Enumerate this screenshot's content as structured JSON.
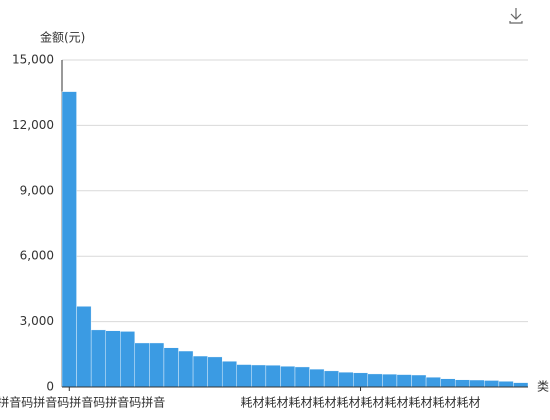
{
  "chart_data": {
    "type": "bar",
    "y_axis_label": "金额(元)",
    "x_axis_label": "类",
    "categories": [
      "音码拼音码拼音码拼音码拼音码拼音",
      null,
      null,
      null,
      null,
      null,
      null,
      null,
      null,
      null,
      null,
      null,
      null,
      null,
      null,
      null,
      null,
      null,
      null,
      null,
      "耗材耗材耗材耗材耗材耗材耗材耗材耗材耗材",
      null,
      null,
      null,
      null,
      null,
      null,
      null,
      null,
      null,
      null,
      null
    ],
    "values": [
      13550,
      3700,
      2620,
      2580,
      2550,
      2020,
      2020,
      1800,
      1650,
      1420,
      1380,
      1180,
      1030,
      1010,
      1000,
      950,
      920,
      820,
      740,
      680,
      650,
      600,
      590,
      570,
      550,
      450,
      380,
      330,
      320,
      300,
      260,
      200
    ],
    "color": "#3b9be3",
    "ylim": [
      0,
      15000
    ],
    "yticks": [
      0,
      {
        "value": 3000,
        "label": "3,000"
      },
      {
        "value": 6000,
        "label": "6,000"
      },
      {
        "value": 9000,
        "label": "9,000"
      },
      {
        "value": 12000,
        "label": "12,000"
      },
      {
        "value": 15000,
        "label": "15,000"
      }
    ],
    "grid": true
  }
}
